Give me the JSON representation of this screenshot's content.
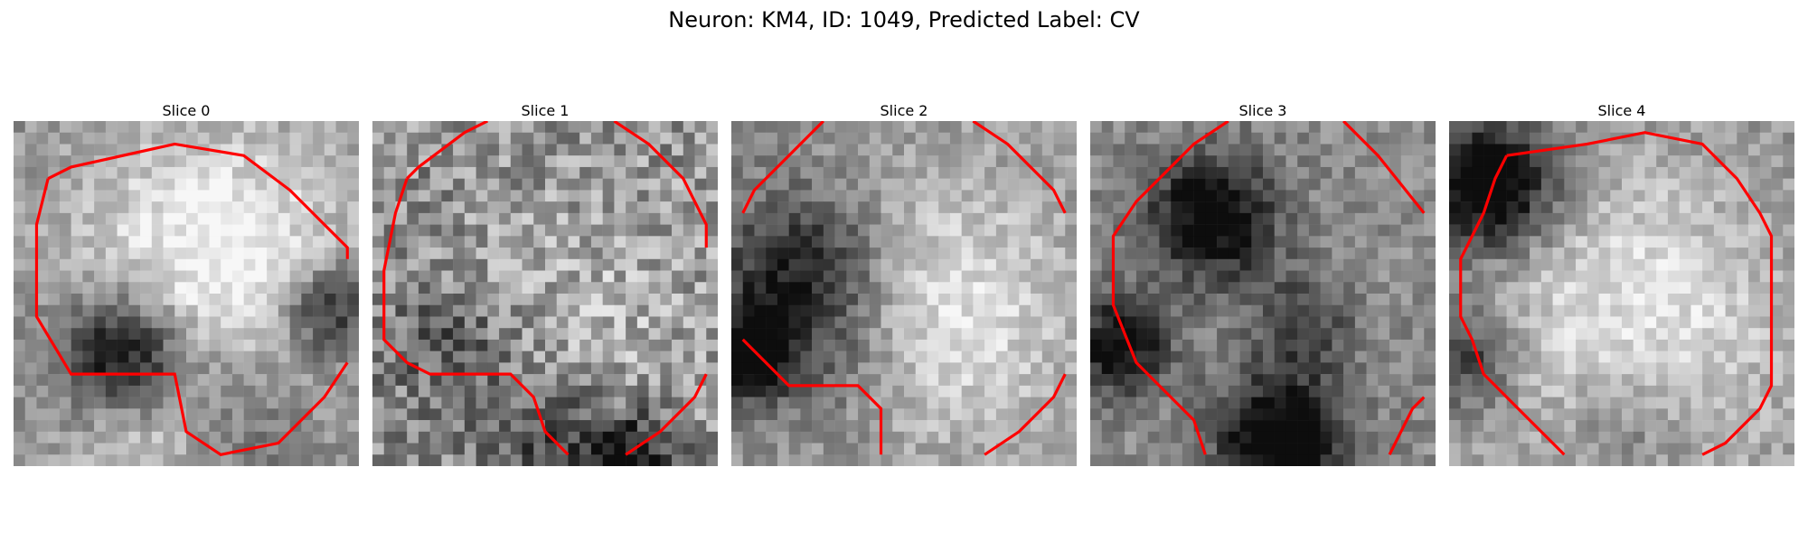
{
  "figure": {
    "title": "Neuron: KM4, ID: 1049, Predicted Label: CV"
  },
  "slices": [
    {
      "label": "Slice 0"
    },
    {
      "label": "Slice 1"
    },
    {
      "label": "Slice 2"
    },
    {
      "label": "Slice 3"
    },
    {
      "label": "Slice 4"
    }
  ],
  "colors": {
    "contour": "#ff0000",
    "colormap": "grayscale"
  }
}
